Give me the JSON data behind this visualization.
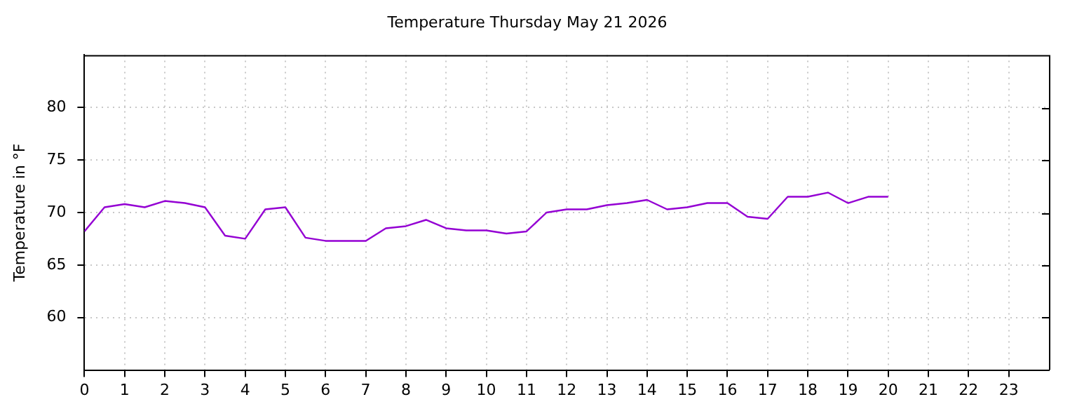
{
  "chart_data": {
    "type": "line",
    "title": "Temperature Thursday May 21 2026",
    "ylabel": "Temperature in °F",
    "x": [
      0,
      0.5,
      1,
      1.5,
      2,
      2.5,
      3,
      3.5,
      4,
      4.5,
      5,
      5.5,
      6,
      6.5,
      7,
      7.5,
      8,
      8.5,
      9,
      9.5,
      10,
      10.5,
      11,
      11.5,
      12,
      12.5,
      13,
      13.5,
      14,
      14.5,
      15,
      15.5,
      16,
      16.5,
      17,
      17.5,
      18,
      18.5,
      19,
      19.5,
      20
    ],
    "series": [
      {
        "color": "#9400d3",
        "values": [
          68.2,
          70.5,
          70.8,
          70.5,
          71.1,
          70.9,
          70.5,
          67.8,
          67.5,
          70.3,
          70.5,
          67.6,
          67.3,
          67.3,
          67.3,
          68.5,
          68.7,
          69.3,
          68.5,
          68.3,
          68.3,
          68.0,
          68.2,
          70.0,
          70.3,
          70.3,
          70.7,
          70.9,
          71.2,
          70.3,
          70.5,
          70.9,
          70.9,
          69.6,
          69.4,
          71.5,
          71.5,
          71.9,
          70.9,
          71.5,
          71.5
        ]
      }
    ],
    "xlim": [
      0,
      24
    ],
    "xticks": [
      0,
      1,
      2,
      3,
      4,
      5,
      6,
      7,
      8,
      9,
      10,
      11,
      12,
      13,
      14,
      15,
      16,
      17,
      18,
      19,
      20,
      21,
      22,
      23
    ],
    "ylim": [
      55,
      85
    ],
    "yticks": [
      60,
      65,
      70,
      75,
      80
    ],
    "grid": true,
    "legend": false,
    "marker": "none",
    "line_style": "solid"
  }
}
